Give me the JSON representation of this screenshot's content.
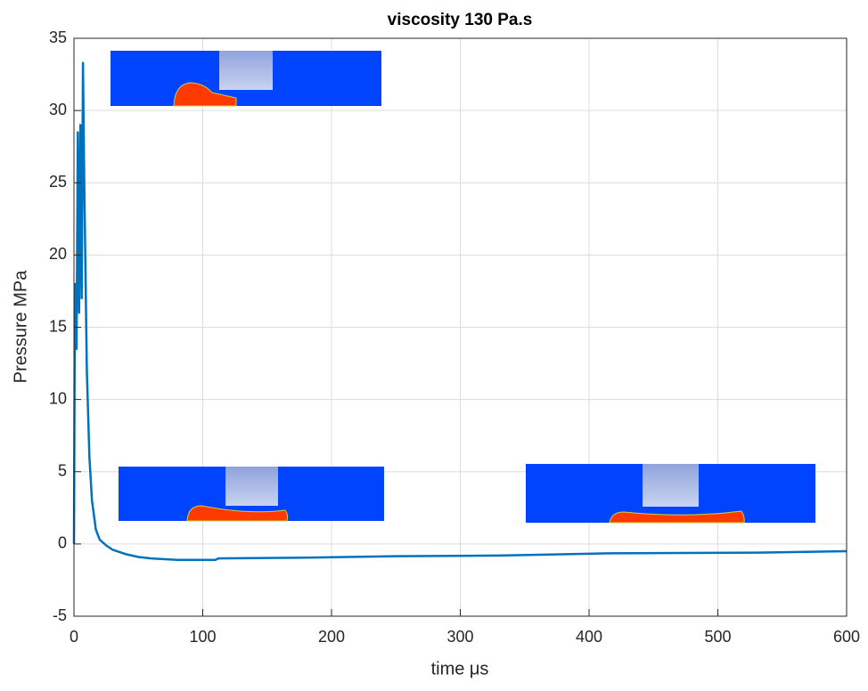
{
  "chart_data": {
    "type": "line",
    "title": "viscosity 130 Pa.s",
    "x_label": "time μs",
    "y_label": "Pressure MPa",
    "x": [
      0,
      0.5,
      1,
      2,
      3,
      4,
      5,
      6,
      7,
      8,
      10,
      12,
      14,
      17,
      20,
      25,
      30,
      40,
      50,
      60,
      80,
      110,
      112,
      180,
      250,
      330,
      415,
      530,
      600
    ],
    "values": [
      0,
      12,
      18,
      13.5,
      28.5,
      16,
      29,
      17,
      33.3,
      25,
      12,
      6,
      3,
      1,
      0.3,
      -0.1,
      -0.4,
      -0.7,
      -0.9,
      -1,
      -1.1,
      -1.1,
      -1,
      -0.95,
      -0.85,
      -0.8,
      -0.65,
      -0.6,
      -0.5
    ],
    "color": "#0072bd",
    "xlim": [
      0,
      600
    ],
    "xticks": [
      0,
      100,
      200,
      300,
      400,
      500,
      600
    ],
    "ylim": [
      -5,
      35
    ],
    "yticks": [
      -5,
      0,
      5,
      10,
      15,
      20,
      25,
      30,
      35
    ],
    "grid": true
  }
}
